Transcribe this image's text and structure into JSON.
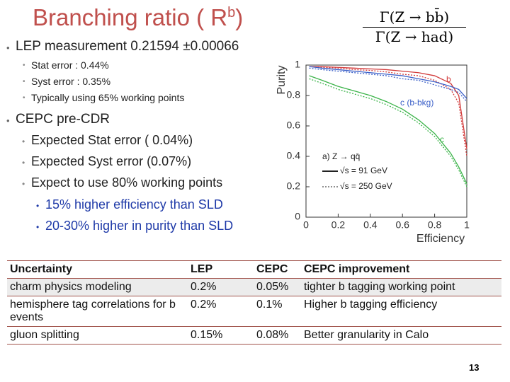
{
  "header": {
    "title": "Branching ratio ( R",
    "title_sup": "b",
    "title_end": ")",
    "formula_numerator": "Γ(Z → bb̄)",
    "formula_denominator": "Γ(Z → had)"
  },
  "bullets": [
    {
      "text": "LEP measurement  0.21594 ±0.00066",
      "sub": [
        "Stat error : 0.44%",
        "Syst error : 0.35%",
        "Typically using 65% working points"
      ]
    },
    {
      "text": "CEPC pre-CDR",
      "sub": [
        "Expected Stat error ( 0.04%)",
        "Expected Syst error   (0.07%)",
        "Expect to use 80% working points"
      ],
      "subsub": [
        "15% higher efficiency than SLD",
        "20-30% higher in purity than SLD"
      ]
    }
  ],
  "chart_data": {
    "type": "line",
    "x_label": "Efficiency",
    "y_label": "Purity",
    "x": [
      0.02,
      0.1,
      0.2,
      0.3,
      0.4,
      0.5,
      0.6,
      0.7,
      0.8,
      0.9,
      0.95,
      1.0
    ],
    "series": [
      {
        "name": "b",
        "color": "#d23a3a",
        "dash": false,
        "values": [
          0.99,
          0.99,
          0.985,
          0.98,
          0.975,
          0.97,
          0.96,
          0.95,
          0.93,
          0.88,
          0.8,
          0.45
        ]
      },
      {
        "color": "#d23a3a",
        "dash": true,
        "values": [
          0.99,
          0.985,
          0.98,
          0.97,
          0.965,
          0.955,
          0.94,
          0.93,
          0.9,
          0.84,
          0.75,
          0.4
        ]
      },
      {
        "name": "c (b-bkg)",
        "color": "#3a5fc8",
        "dash": false,
        "values": [
          0.99,
          0.98,
          0.97,
          0.96,
          0.95,
          0.94,
          0.93,
          0.91,
          0.89,
          0.86,
          0.84,
          0.78
        ]
      },
      {
        "color": "#3a5fc8",
        "dash": true,
        "values": [
          0.98,
          0.97,
          0.96,
          0.95,
          0.94,
          0.93,
          0.91,
          0.9,
          0.87,
          0.84,
          0.82,
          0.76
        ]
      },
      {
        "name": "c",
        "color": "#3cb44a",
        "dash": false,
        "values": [
          0.93,
          0.9,
          0.86,
          0.83,
          0.8,
          0.76,
          0.71,
          0.64,
          0.55,
          0.42,
          0.33,
          0.22
        ]
      },
      {
        "color": "#3cb44a",
        "dash": true,
        "values": [
          0.91,
          0.88,
          0.84,
          0.81,
          0.78,
          0.74,
          0.69,
          0.62,
          0.53,
          0.4,
          0.31,
          0.2
        ]
      }
    ],
    "xlim": [
      0,
      1
    ],
    "ylim": [
      0,
      1
    ],
    "xticks": [
      0,
      0.2,
      0.4,
      0.6,
      0.8,
      1
    ],
    "yticks": [
      0,
      0.2,
      0.4,
      0.6,
      0.8,
      1
    ],
    "legend_title": "a) Z → qq̄",
    "legend": [
      {
        "label": "√s = 91 GeV",
        "dash": false
      },
      {
        "label": "√s = 250 GeV",
        "dash": true
      }
    ]
  },
  "table": {
    "rows": [
      [
        "Uncertainty",
        "LEP",
        "CEPC",
        "CEPC improvement"
      ],
      [
        "charm physics modeling",
        "0.2%",
        "0.05%",
        "tighter b tagging working point"
      ],
      [
        "hemisphere tag correlations for b events",
        "0.2%",
        "0.1%",
        "Higher b tagging efficiency"
      ],
      [
        "gluon splitting",
        "0.15%",
        "0.08%",
        "Better granularity in Calo"
      ]
    ]
  },
  "page_number": "13"
}
